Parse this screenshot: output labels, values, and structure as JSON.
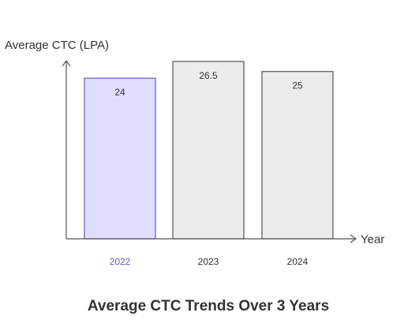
{
  "chart_data": {
    "type": "bar",
    "title": "Average CTC Trends Over 3 Years",
    "xlabel": "Year",
    "ylabel": "Average CTC (LPA)",
    "categories": [
      "2022",
      "2023",
      "2024"
    ],
    "values": [
      24,
      26.5,
      25
    ],
    "value_labels": [
      "24",
      "26.5",
      "25"
    ],
    "ylim": [
      0,
      26.5
    ],
    "grid": false,
    "legend": "none",
    "highlighted_category": "2022",
    "colors": {
      "highlight_fill": "#e0deff",
      "highlight_stroke": "#6a55c8",
      "highlight_text": "#6a55c8",
      "bar_fill": "#ececec",
      "bar_stroke": "#555555",
      "axis": "#555555",
      "text": "#333333"
    }
  }
}
